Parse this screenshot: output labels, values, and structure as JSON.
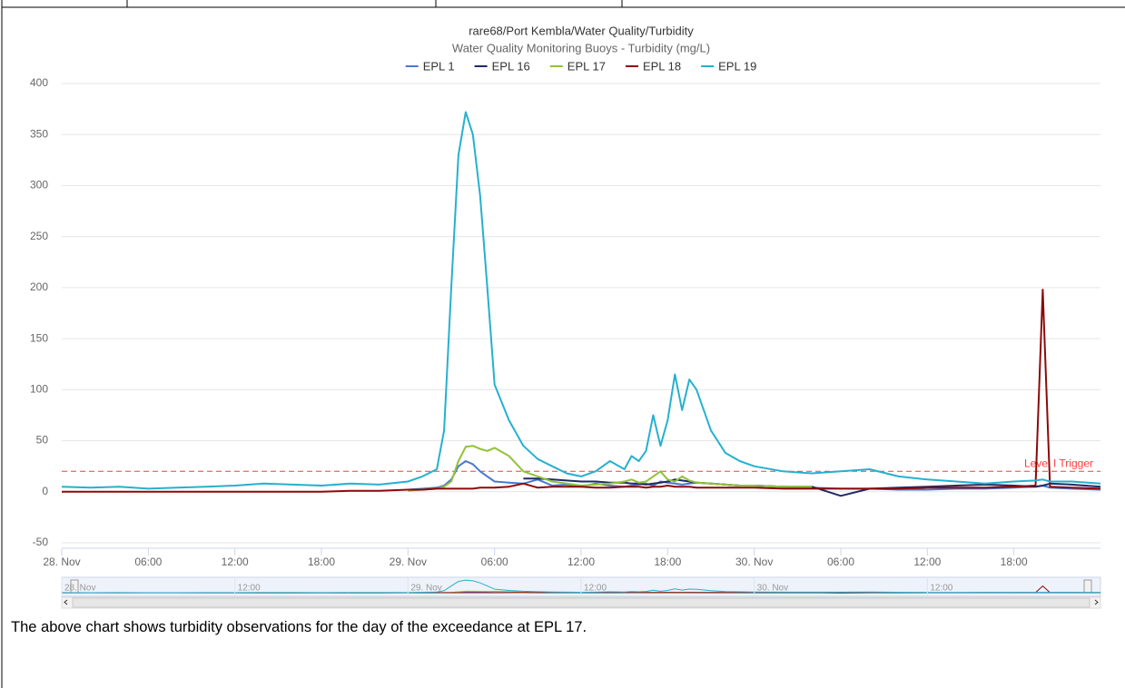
{
  "chart_data": {
    "type": "line",
    "title": "rare68/Port Kembla/Water Quality/Turbidity",
    "subtitle": "Water Quality Monitoring Buoys - Turbidity (mg/L)",
    "x": [
      0,
      2,
      4,
      6,
      8,
      10,
      12,
      14,
      16,
      18,
      20,
      22,
      24,
      25,
      26,
      26.5,
      27,
      27.5,
      28,
      28.5,
      29,
      29.5,
      30,
      31,
      32,
      33,
      34,
      35,
      36,
      37,
      38,
      39,
      39.5,
      40,
      40.5,
      41,
      41.5,
      42,
      42.5,
      43,
      43.5,
      44,
      45,
      46,
      47,
      48,
      50,
      52,
      54,
      56,
      58,
      60,
      62,
      64,
      66,
      67.5,
      68,
      68.5,
      70,
      72
    ],
    "xlim": [
      0,
      72
    ],
    "xticks": [
      {
        "value": 0,
        "label": "28. Nov"
      },
      {
        "value": 6,
        "label": "06:00"
      },
      {
        "value": 12,
        "label": "12:00"
      },
      {
        "value": 18,
        "label": "18:00"
      },
      {
        "value": 24,
        "label": "29. Nov"
      },
      {
        "value": 30,
        "label": "06:00"
      },
      {
        "value": 36,
        "label": "12:00"
      },
      {
        "value": 42,
        "label": "18:00"
      },
      {
        "value": 48,
        "label": "30. Nov"
      },
      {
        "value": 54,
        "label": "06:00"
      },
      {
        "value": 60,
        "label": "12:00"
      },
      {
        "value": 66,
        "label": "18:00"
      }
    ],
    "ylim": [
      -50,
      400
    ],
    "yticks": [
      -50,
      0,
      50,
      100,
      150,
      200,
      250,
      300,
      350,
      400
    ],
    "grid": true,
    "legend": "top",
    "series": [
      {
        "name": "EPL 1",
        "color": "#4a78d0",
        "values": [
          null,
          null,
          null,
          null,
          null,
          null,
          null,
          null,
          null,
          null,
          null,
          null,
          2,
          3,
          4,
          6,
          12,
          25,
          30,
          27,
          20,
          15,
          10,
          9,
          8,
          12,
          6,
          7,
          5,
          8,
          6,
          5,
          6,
          7,
          8,
          6,
          10,
          9,
          8,
          7,
          8,
          9,
          8,
          7,
          6,
          6,
          5,
          4,
          3,
          3,
          2,
          2,
          3,
          3,
          4,
          5,
          6,
          4,
          3,
          2
        ]
      },
      {
        "name": "EPL 16",
        "color": "#1f2a66",
        "values": [
          null,
          null,
          null,
          null,
          null,
          null,
          null,
          null,
          null,
          null,
          null,
          null,
          null,
          null,
          null,
          null,
          null,
          null,
          null,
          null,
          null,
          null,
          null,
          null,
          13,
          13,
          12,
          11,
          10,
          10,
          9,
          9,
          8,
          8,
          7,
          8,
          9,
          10,
          12,
          11,
          10,
          9,
          8,
          7,
          6,
          6,
          5,
          5,
          -4,
          3,
          4,
          5,
          6,
          7,
          6,
          5,
          6,
          8,
          7,
          5
        ]
      },
      {
        "name": "EPL 17",
        "color": "#90c23a",
        "values": [
          null,
          null,
          null,
          null,
          null,
          null,
          null,
          null,
          null,
          null,
          null,
          null,
          1,
          2,
          3,
          5,
          10,
          30,
          44,
          45,
          42,
          40,
          43,
          35,
          20,
          15,
          10,
          8,
          6,
          7,
          8,
          10,
          12,
          9,
          10,
          15,
          20,
          12,
          10,
          15,
          11,
          9,
          8,
          7,
          6,
          6,
          5,
          5,
          null,
          null,
          null,
          null,
          null,
          null,
          null,
          null,
          null,
          null,
          null,
          null
        ]
      },
      {
        "name": "EPL 18",
        "color": "#8b0a0a",
        "values": [
          0,
          0,
          0,
          0,
          0,
          0,
          0,
          0,
          0,
          0,
          1,
          1,
          2,
          2,
          3,
          3,
          3,
          3,
          3,
          3,
          4,
          4,
          4,
          5,
          8,
          4,
          5,
          5,
          5,
          4,
          4,
          5,
          5,
          5,
          4,
          5,
          5,
          6,
          5,
          5,
          5,
          4,
          4,
          4,
          4,
          4,
          3,
          3,
          3,
          3,
          3,
          4,
          4,
          4,
          5,
          6,
          198,
          5,
          4,
          3
        ]
      },
      {
        "name": "EPL 19",
        "color": "#26b0cf",
        "values": [
          5,
          4,
          5,
          3,
          4,
          5,
          6,
          8,
          7,
          6,
          8,
          7,
          10,
          15,
          22,
          60,
          200,
          330,
          372,
          350,
          290,
          200,
          105,
          70,
          45,
          32,
          25,
          18,
          15,
          20,
          30,
          22,
          35,
          30,
          40,
          75,
          45,
          70,
          115,
          80,
          110,
          100,
          60,
          38,
          30,
          25,
          20,
          18,
          20,
          22,
          15,
          12,
          10,
          8,
          10,
          11,
          12,
          10,
          10,
          8
        ]
      }
    ],
    "plot_lines": [
      {
        "value": 20,
        "label": "Level I Trigger",
        "color": "#ff3b3b"
      }
    ],
    "navigator_xticks": [
      {
        "value": 0,
        "label": "28. Nov"
      },
      {
        "value": 12,
        "label": "12:00"
      },
      {
        "value": 24,
        "label": "29. Nov"
      },
      {
        "value": 36,
        "label": "12:00"
      },
      {
        "value": 48,
        "label": "30. Nov"
      },
      {
        "value": 60,
        "label": "12:00"
      }
    ]
  },
  "document": {
    "caption": "The above chart shows turbidity observations for the day of the exceedance at EPL 17."
  }
}
